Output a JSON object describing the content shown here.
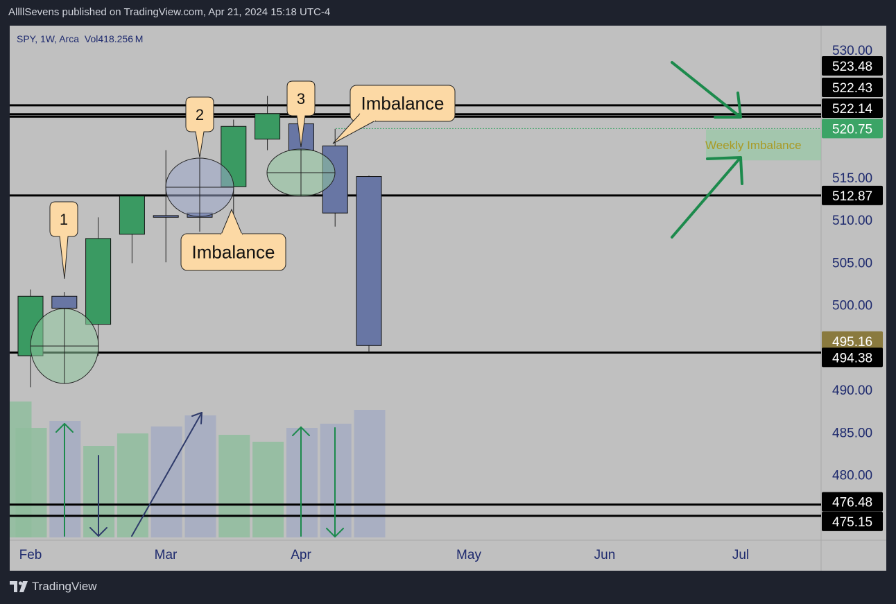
{
  "header": {
    "publish_line": "AllllSevens published on TradingView.com, Apr 21, 2024 15:18 UTC-4"
  },
  "footer": {
    "brand": "TradingView",
    "logo_icon": "tradingview-logo-icon"
  },
  "colors": {
    "background_page": "#1e222d",
    "chart_bg": "#c0c0c0",
    "up_candle": "#3a9a62",
    "down_candle": "#6876a4",
    "callout_fill": "#fcd9a5",
    "arrow_green": "#1c8a4c",
    "price_label_bg": "#000000",
    "current_price_bg": "#3ba466",
    "gold_label_bg": "#8a7a3e",
    "weekly_imbalance_text": "#a99a24"
  },
  "chart_data": {
    "type": "candlestick",
    "symbol_line": {
      "symbol": "SPY, 1W, Arca",
      "volume": "Vol418.256 M"
    },
    "y_axis": {
      "ylim": [
        472,
        533
      ],
      "ticks": [
        "530.00",
        "515.00",
        "510.00",
        "505.00",
        "500.00",
        "490.00",
        "485.00",
        "480.00"
      ]
    },
    "x_axis": {
      "labels": [
        "Feb",
        "Mar",
        "Apr",
        "May",
        "Jun",
        "Jul"
      ]
    },
    "candles": [
      {
        "week": "Jan 29",
        "open": 494.0,
        "high": 501.8,
        "low": 490.3,
        "close": 501.0,
        "dir": "up"
      },
      {
        "week": "Feb 05",
        "open": 501.0,
        "high": 501.5,
        "low": 499.6,
        "close": 499.6,
        "dir": "down"
      },
      {
        "week": "Feb 12",
        "open": 497.7,
        "high": 510.3,
        "low": 494.0,
        "close": 507.8,
        "dir": "up"
      },
      {
        "week": "Feb 20",
        "open": 508.3,
        "high": 512.7,
        "low": 504.9,
        "close": 512.8,
        "dir": "up"
      },
      {
        "week": "Feb 26",
        "open": 510.5,
        "high": 518.2,
        "low": 505.0,
        "close": 510.3,
        "dir": "doji"
      },
      {
        "week": "Mar 04",
        "open": 510.8,
        "high": 517.2,
        "low": 508.6,
        "close": 510.3,
        "dir": "down"
      },
      {
        "week": "Mar 11",
        "open": 513.9,
        "high": 521.8,
        "low": 509.6,
        "close": 521.0,
        "dir": "up"
      },
      {
        "week": "Mar 18",
        "open": 519.5,
        "high": 524.6,
        "low": 518.2,
        "close": 522.5,
        "dir": "up"
      },
      {
        "week": "Mar 25",
        "open": 521.3,
        "high": 523.2,
        "low": 518.1,
        "close": 518.2,
        "dir": "down"
      },
      {
        "week": "Apr 01",
        "open": 518.7,
        "high": 520.7,
        "low": 509.2,
        "close": 510.8,
        "dir": "down"
      },
      {
        "week": "Apr 08",
        "open": 515.1,
        "high": 515.2,
        "low": 494.4,
        "close": 495.2,
        "dir": "down"
      }
    ],
    "volume_bars": [
      {
        "week": "Jan 26",
        "dir": "up",
        "rel": 0.98
      },
      {
        "week": "Jan 29",
        "dir": "up",
        "rel": 0.79
      },
      {
        "week": "Feb 05",
        "dir": "down",
        "rel": 0.84
      },
      {
        "week": "Feb 12",
        "dir": "up",
        "rel": 0.66
      },
      {
        "week": "Feb 20",
        "dir": "up",
        "rel": 0.75
      },
      {
        "week": "Feb 26",
        "dir": "down",
        "rel": 0.8
      },
      {
        "week": "Mar 04",
        "dir": "down",
        "rel": 0.88
      },
      {
        "week": "Mar 11",
        "dir": "up",
        "rel": 0.74
      },
      {
        "week": "Mar 18",
        "dir": "up",
        "rel": 0.69
      },
      {
        "week": "Mar 25",
        "dir": "down",
        "rel": 0.79
      },
      {
        "week": "Apr 01",
        "dir": "down",
        "rel": 0.82
      },
      {
        "week": "Apr 08",
        "dir": "down",
        "rel": 0.92
      }
    ],
    "horizontal_levels": [
      "523.48",
      "522.43",
      "522.14",
      "512.87",
      "494.38",
      "476.48",
      "475.15"
    ],
    "price_labels": [
      {
        "text": "523.48",
        "value": 523.48,
        "style": "black"
      },
      {
        "text": "522.43",
        "value": 522.43,
        "style": "black"
      },
      {
        "text": "522.14",
        "value": 522.14,
        "style": "black"
      },
      {
        "text": "520.75",
        "value": 520.75,
        "style": "green"
      },
      {
        "text": "512.87",
        "value": 512.87,
        "style": "black"
      },
      {
        "text": "495.16",
        "value": 495.16,
        "style": "gold"
      },
      {
        "text": "494.38",
        "value": 494.38,
        "style": "black"
      },
      {
        "text": "476.48",
        "value": 476.48,
        "style": "black"
      },
      {
        "text": "475.15",
        "value": 475.15,
        "style": "black"
      }
    ],
    "current_price_line": 520.75,
    "annotations": {
      "callout_1": "1",
      "callout_2": "2",
      "callout_3": "3",
      "imbalance_label_a": "Imbalance",
      "imbalance_label_b": "Imbalance",
      "weekly_imbalance": "Weekly Imbalance"
    }
  }
}
